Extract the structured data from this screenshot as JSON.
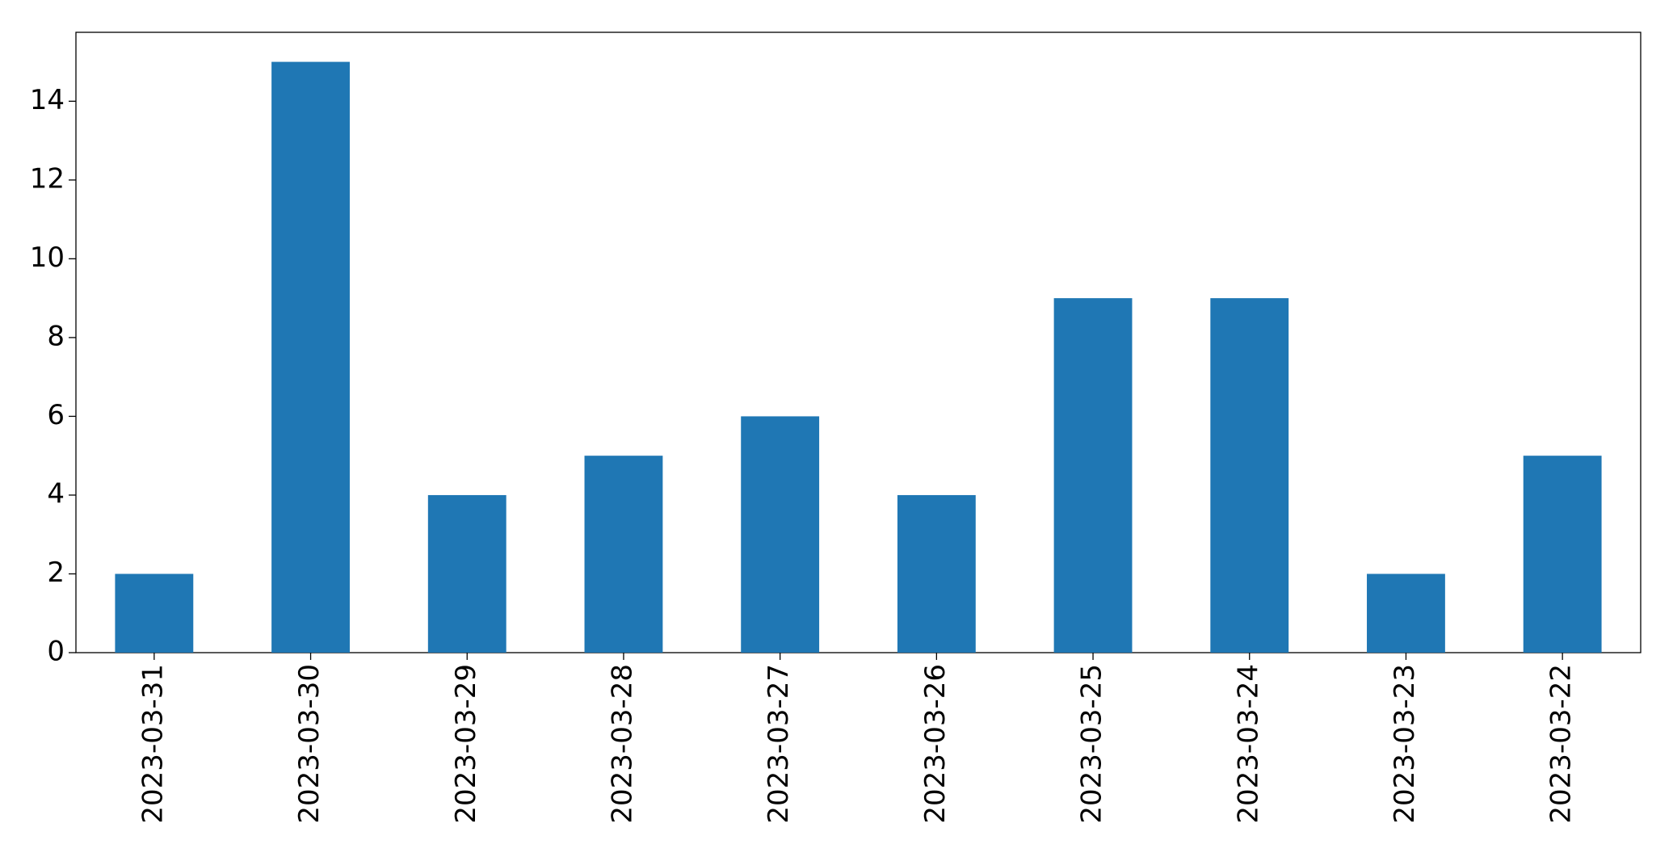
{
  "chart_data": {
    "type": "bar",
    "categories": [
      "2023-03-31",
      "2023-03-30",
      "2023-03-29",
      "2023-03-28",
      "2023-03-27",
      "2023-03-26",
      "2023-03-25",
      "2023-03-24",
      "2023-03-23",
      "2023-03-22"
    ],
    "values": [
      2,
      15,
      4,
      5,
      6,
      4,
      9,
      9,
      2,
      5
    ],
    "color": "#1f77b4",
    "ylim": [
      0,
      15.75
    ],
    "yticks": [
      0,
      2,
      4,
      6,
      8,
      10,
      12,
      14
    ],
    "grid": false
  }
}
